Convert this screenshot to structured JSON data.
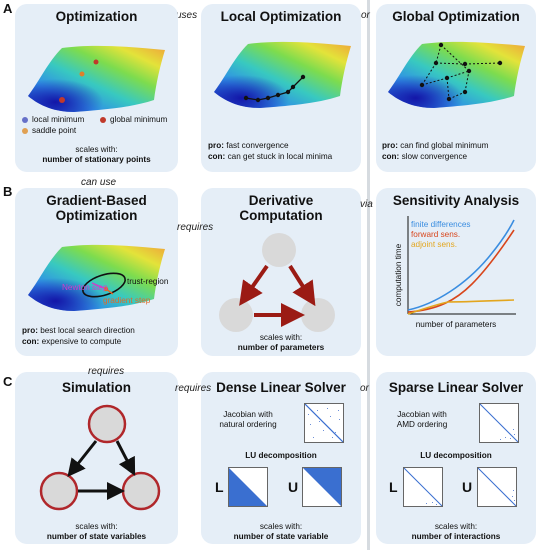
{
  "sections": {
    "a": "A",
    "b": "B",
    "c": "C"
  },
  "connectors": {
    "uses": "uses",
    "or1": "or",
    "can_use": "can use",
    "requires1": "requires",
    "via": "via",
    "requires2": "requires",
    "requires3": "requires",
    "or2": "or"
  },
  "row1": {
    "optimization": {
      "title": "Optimization",
      "legend": {
        "local_minimum": "local minimum",
        "global_minimum": "global minimum",
        "saddle_point": "saddle point"
      },
      "scales_with": "scales with:",
      "scales_value": "number of stationary points"
    },
    "local": {
      "title": "Local Optimization",
      "pro_label": "pro:",
      "pro": "fast convergence",
      "con_label": "con:",
      "con": "can get stuck in local minima"
    },
    "global": {
      "title": "Global Optimization",
      "pro_label": "pro:",
      "pro": "can find global minimum",
      "con_label": "con:",
      "con": "slow convergence"
    }
  },
  "row2": {
    "gradient": {
      "title_line1": "Gradient-Based",
      "title_line2": "Optimization",
      "trust_region": "trust-region",
      "newton_step": "Newton step",
      "gradient_step": "gradient step",
      "pro_label": "pro:",
      "pro": "best local search direction",
      "con_label": "con:",
      "con": "expensive to compute"
    },
    "derivative": {
      "title_line1": "Derivative",
      "title_line2": "Computation",
      "scales_with": "scales with:",
      "scales_value": "number of parameters"
    },
    "sensitivity": {
      "title": "Sensitivity Analysis",
      "ylabel": "computation time",
      "xlabel": "number of parameters",
      "legend": {
        "finite": "finite differences",
        "forward": "forward sens.",
        "adjoint": "adjoint sens."
      }
    }
  },
  "row3": {
    "simulation": {
      "title": "Simulation",
      "scales_with": "scales with:",
      "scales_value": "number of state variables"
    },
    "dense": {
      "title": "Dense Linear Solver",
      "jacobian_line1": "Jacobian with",
      "jacobian_line2": "natural ordering",
      "lu": "LU decomposition",
      "L": "L",
      "U": "U",
      "scales_with": "scales with:",
      "scales_value": "number of state variable"
    },
    "sparse": {
      "title": "Sparse Linear Solver",
      "jacobian_line1": "Jacobian with",
      "jacobian_line2": "AMD ordering",
      "lu": "LU decomposition",
      "L": "L",
      "U": "U",
      "scales_with": "scales with:",
      "scales_value": "number of interactions"
    }
  },
  "colors": {
    "panel": "#e5eef7",
    "dark_red": "#9b1b14",
    "blue": "#3a8de0",
    "orange_red": "#d8461c",
    "yellow": "#e3a61e",
    "magenta": "#d23cc8",
    "orange": "#e06a2a"
  }
}
